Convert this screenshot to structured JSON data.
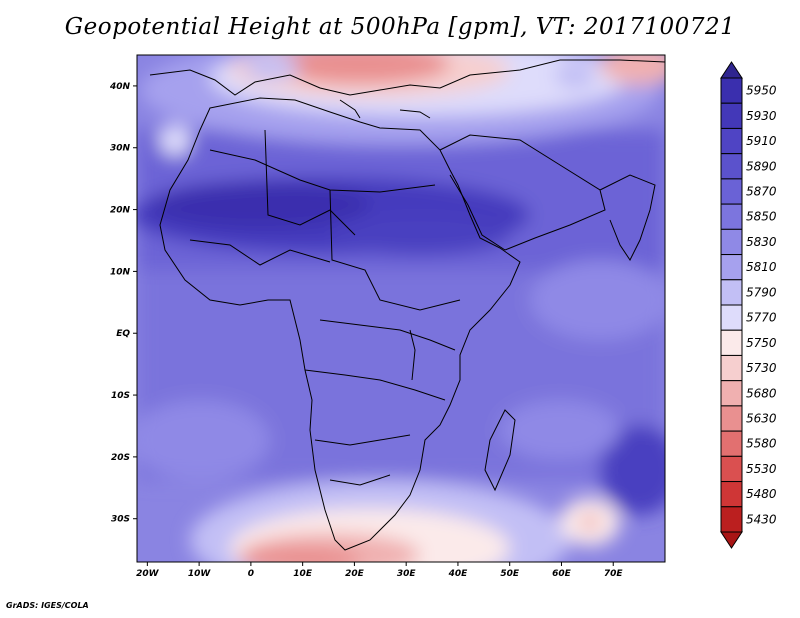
{
  "title": "Geopotential Height at 500hPa [gpm], VT: 2017100721",
  "credit": "GrADS: IGES/COLA",
  "map": {
    "lon_range": [
      -22,
      80
    ],
    "lat_range": [
      -37,
      45
    ],
    "lon_ticks": [
      {
        "value": -20,
        "label": "20W"
      },
      {
        "value": -10,
        "label": "10W"
      },
      {
        "value": 0,
        "label": "0"
      },
      {
        "value": 10,
        "label": "10E"
      },
      {
        "value": 20,
        "label": "20E"
      },
      {
        "value": 30,
        "label": "30E"
      },
      {
        "value": 40,
        "label": "40E"
      },
      {
        "value": 50,
        "label": "50E"
      },
      {
        "value": 60,
        "label": "60E"
      },
      {
        "value": 70,
        "label": "70E"
      }
    ],
    "lat_ticks": [
      {
        "value": 40,
        "label": "40N"
      },
      {
        "value": 30,
        "label": "30N"
      },
      {
        "value": 20,
        "label": "20N"
      },
      {
        "value": 10,
        "label": "10N"
      },
      {
        "value": 0,
        "label": "EQ"
      },
      {
        "value": -10,
        "label": "10S"
      },
      {
        "value": -20,
        "label": "20S"
      },
      {
        "value": -30,
        "label": "30S"
      }
    ]
  },
  "colorbar": {
    "levels": [
      "5950",
      "5930",
      "5910",
      "5890",
      "5870",
      "5850",
      "5830",
      "5810",
      "5790",
      "5770",
      "5750",
      "5730",
      "5680",
      "5630",
      "5580",
      "5530",
      "5480",
      "5430"
    ],
    "colors": [
      "#3a2fae",
      "#4338b8",
      "#4f44c4",
      "#5b52cc",
      "#6a62d6",
      "#7c75de",
      "#8f89e6",
      "#a6a1ee",
      "#c2bff5",
      "#dedcfb",
      "#fbeaea",
      "#f6cfcf",
      "#f0b0b0",
      "#e99090",
      "#e27070",
      "#da5050",
      "#cf3636",
      "#bb1f1f"
    ],
    "top_arrow_color": "#2f258f",
    "bottom_arrow_color": "#a81515"
  }
}
